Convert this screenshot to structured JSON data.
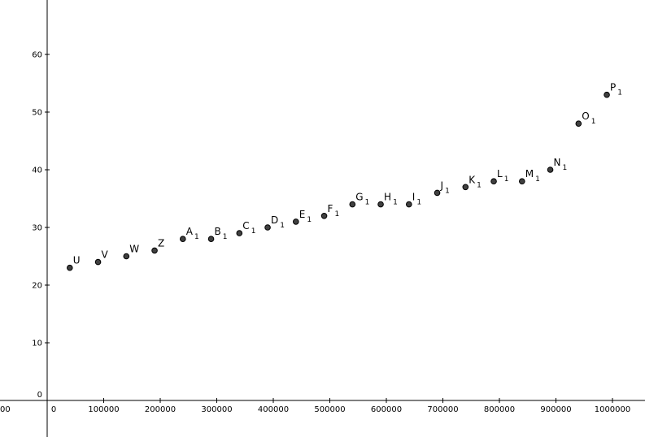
{
  "chart_data": {
    "type": "scatter",
    "title": "",
    "xlabel": "",
    "ylabel": "",
    "grid": false,
    "xlim": [
      -90000,
      1055000
    ],
    "ylim": [
      -1,
      68
    ],
    "x_ticks": [
      0,
      100000,
      200000,
      300000,
      400000,
      500000,
      600000,
      700000,
      800000,
      900000,
      1000000
    ],
    "x_tick_labels": [
      "0",
      "100000",
      "200000",
      "300000",
      "400000",
      "500000",
      "600000",
      "700000",
      "800000",
      "900000",
      "1000000"
    ],
    "x_left_edge_label": "00",
    "y_ticks": [
      0,
      10,
      20,
      30,
      40,
      50,
      60
    ],
    "y_tick_labels": [
      "0",
      "10",
      "20",
      "30",
      "40",
      "50",
      "60"
    ],
    "points": [
      {
        "name": "U",
        "sub": "",
        "x": 40000,
        "y": 23
      },
      {
        "name": "V",
        "sub": "",
        "x": 90000,
        "y": 24
      },
      {
        "name": "W",
        "sub": "",
        "x": 140000,
        "y": 25
      },
      {
        "name": "Z",
        "sub": "",
        "x": 190000,
        "y": 26
      },
      {
        "name": "A",
        "sub": "1",
        "x": 240000,
        "y": 28
      },
      {
        "name": "B",
        "sub": "1",
        "x": 290000,
        "y": 28
      },
      {
        "name": "C",
        "sub": "1",
        "x": 340000,
        "y": 29
      },
      {
        "name": "D",
        "sub": "1",
        "x": 390000,
        "y": 30
      },
      {
        "name": "E",
        "sub": "1",
        "x": 440000,
        "y": 31
      },
      {
        "name": "F",
        "sub": "1",
        "x": 490000,
        "y": 32
      },
      {
        "name": "G",
        "sub": "1",
        "x": 540000,
        "y": 34
      },
      {
        "name": "H",
        "sub": "1",
        "x": 590000,
        "y": 34
      },
      {
        "name": "I",
        "sub": "1",
        "x": 640000,
        "y": 34
      },
      {
        "name": "J",
        "sub": "1",
        "x": 690000,
        "y": 36
      },
      {
        "name": "K",
        "sub": "1",
        "x": 740000,
        "y": 37
      },
      {
        "name": "L",
        "sub": "1",
        "x": 790000,
        "y": 38
      },
      {
        "name": "M",
        "sub": "1",
        "x": 840000,
        "y": 38
      },
      {
        "name": "N",
        "sub": "1",
        "x": 890000,
        "y": 40
      },
      {
        "name": "O",
        "sub": "1",
        "x": 940000,
        "y": 48
      },
      {
        "name": "P",
        "sub": "1",
        "x": 990000,
        "y": 53
      }
    ],
    "point_color": "#404040"
  }
}
